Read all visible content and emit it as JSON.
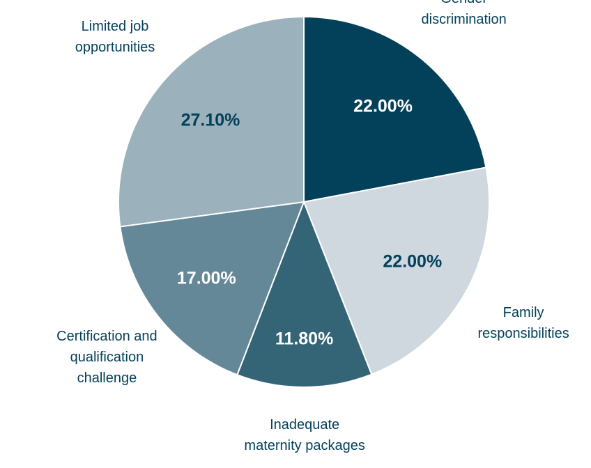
{
  "chart_data": {
    "type": "pie",
    "categories": [
      "Gender discrimination",
      "Family responsibilities",
      "Inadequate maternity packages",
      "Certification and qualification challenge",
      "Limited job opportunities"
    ],
    "values": [
      22,
      22,
      11.8,
      17,
      27.1
    ],
    "value_labels": [
      "22.00%",
      "22.00%",
      "11.80%",
      "17.00%",
      "27.10%"
    ],
    "colors": [
      "#03405a",
      "#cfd8df",
      "#346577",
      "#648897",
      "#9bb1bc"
    ]
  }
}
